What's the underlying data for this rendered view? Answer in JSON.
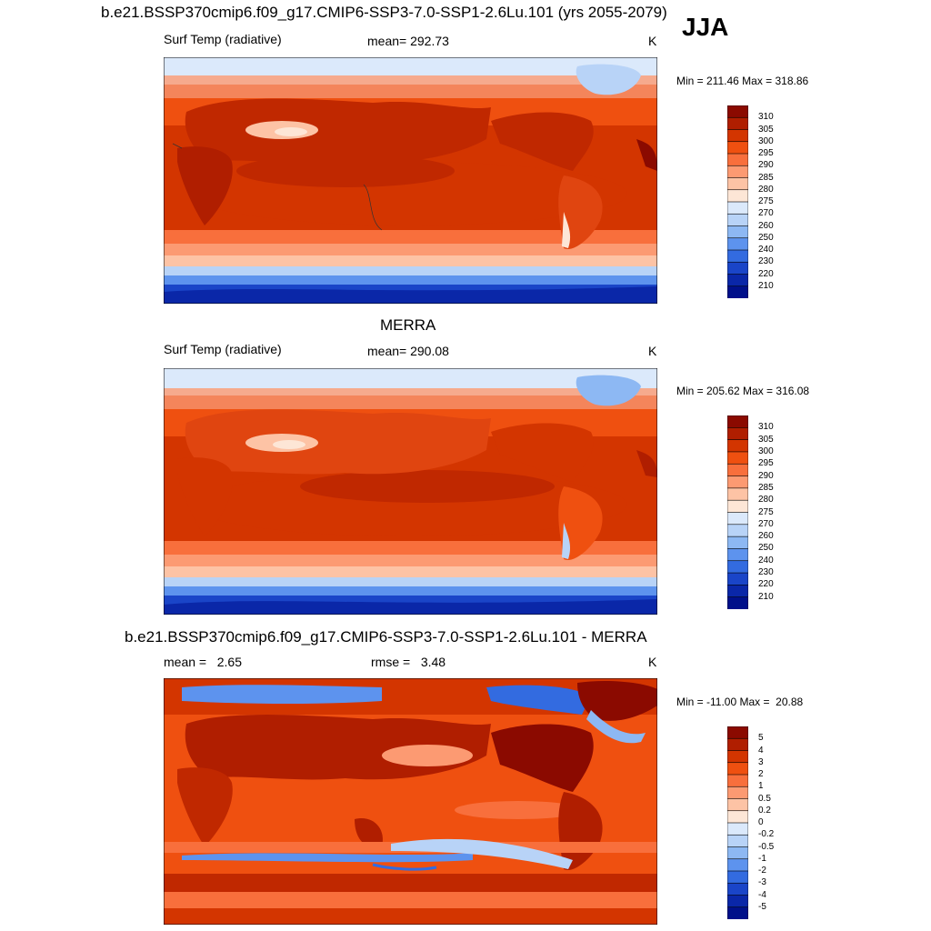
{
  "header": {
    "season": "JJA"
  },
  "panels": [
    {
      "title": "b.e21.BSSP370cmip6.f09_g17.CMIP6-SSP3-7.0-SSP1-2.6Lu.101 (yrs 2055-2079)",
      "left_label": "Surf Temp (radiative)",
      "center_label": "mean= 292.73",
      "units": "K",
      "minmax": "Min = 211.46 Max = 318.86"
    },
    {
      "title": "MERRA",
      "left_label": "Surf Temp (radiative)",
      "center_label": "mean= 290.08",
      "units": "K",
      "minmax": "Min = 205.62 Max = 316.08"
    },
    {
      "title": "b.e21.BSSP370cmip6.f09_g17.CMIP6-SSP3-7.0-SSP1-2.6Lu.101 - MERRA",
      "left_label": "mean =   2.65",
      "center_label": "rmse =   3.48",
      "units": "K",
      "minmax": "Min = -11.00 Max =  20.88"
    }
  ],
  "colorbars": {
    "temperature": {
      "labels": [
        "310",
        "305",
        "300",
        "295",
        "290",
        "285",
        "280",
        "275",
        "270",
        "260",
        "250",
        "240",
        "230",
        "220",
        "210"
      ],
      "colors": [
        "#8b0a00",
        "#b01e00",
        "#d33500",
        "#ef5010",
        "#f86f3c",
        "#fc9a72",
        "#fdc3a5",
        "#fde6d6",
        "#dbe9fb",
        "#b8d3f7",
        "#8db8f3",
        "#5d93ee",
        "#336be0",
        "#1a45c8",
        "#0a27a8",
        "#00108a"
      ]
    },
    "difference": {
      "labels": [
        "5",
        "4",
        "3",
        "2",
        "1",
        "0.5",
        "0.2",
        "0",
        "-0.2",
        "-0.5",
        "-1",
        "-2",
        "-3",
        "-4",
        "-5"
      ],
      "colors": [
        "#8b0a00",
        "#b01e00",
        "#d33500",
        "#ef5010",
        "#f86f3c",
        "#fc9a72",
        "#fdc3a5",
        "#fde6d6",
        "#dbe9fb",
        "#b8d3f7",
        "#8db8f3",
        "#5d93ee",
        "#336be0",
        "#1a45c8",
        "#0a27a8",
        "#00108a"
      ]
    }
  }
}
